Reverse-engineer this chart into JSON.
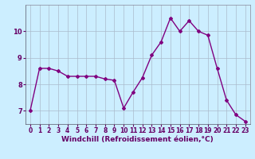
{
  "x": [
    0,
    1,
    2,
    3,
    4,
    5,
    6,
    7,
    8,
    9,
    10,
    11,
    12,
    13,
    14,
    15,
    16,
    17,
    18,
    19,
    20,
    21,
    22,
    23
  ],
  "y": [
    7.0,
    8.6,
    8.6,
    8.5,
    8.3,
    8.3,
    8.3,
    8.3,
    8.2,
    8.15,
    7.1,
    7.7,
    8.25,
    9.1,
    9.6,
    10.5,
    10.0,
    10.4,
    10.0,
    9.85,
    8.6,
    7.4,
    6.85,
    6.6
  ],
  "line_color": "#800080",
  "marker": "D",
  "marker_size": 2,
  "line_width": 1.0,
  "bg_color": "#cceeff",
  "grid_color": "#aabbcc",
  "xlabel": "Windchill (Refroidissement éolien,°C)",
  "xlabel_fontsize": 6.5,
  "tick_fontsize": 5.5,
  "ylim": [
    6.5,
    11.0
  ],
  "xlim": [
    -0.5,
    23.5
  ],
  "yticks": [
    7,
    8,
    9,
    10
  ],
  "xticks": [
    0,
    1,
    2,
    3,
    4,
    5,
    6,
    7,
    8,
    9,
    10,
    11,
    12,
    13,
    14,
    15,
    16,
    17,
    18,
    19,
    20,
    21,
    22,
    23
  ]
}
